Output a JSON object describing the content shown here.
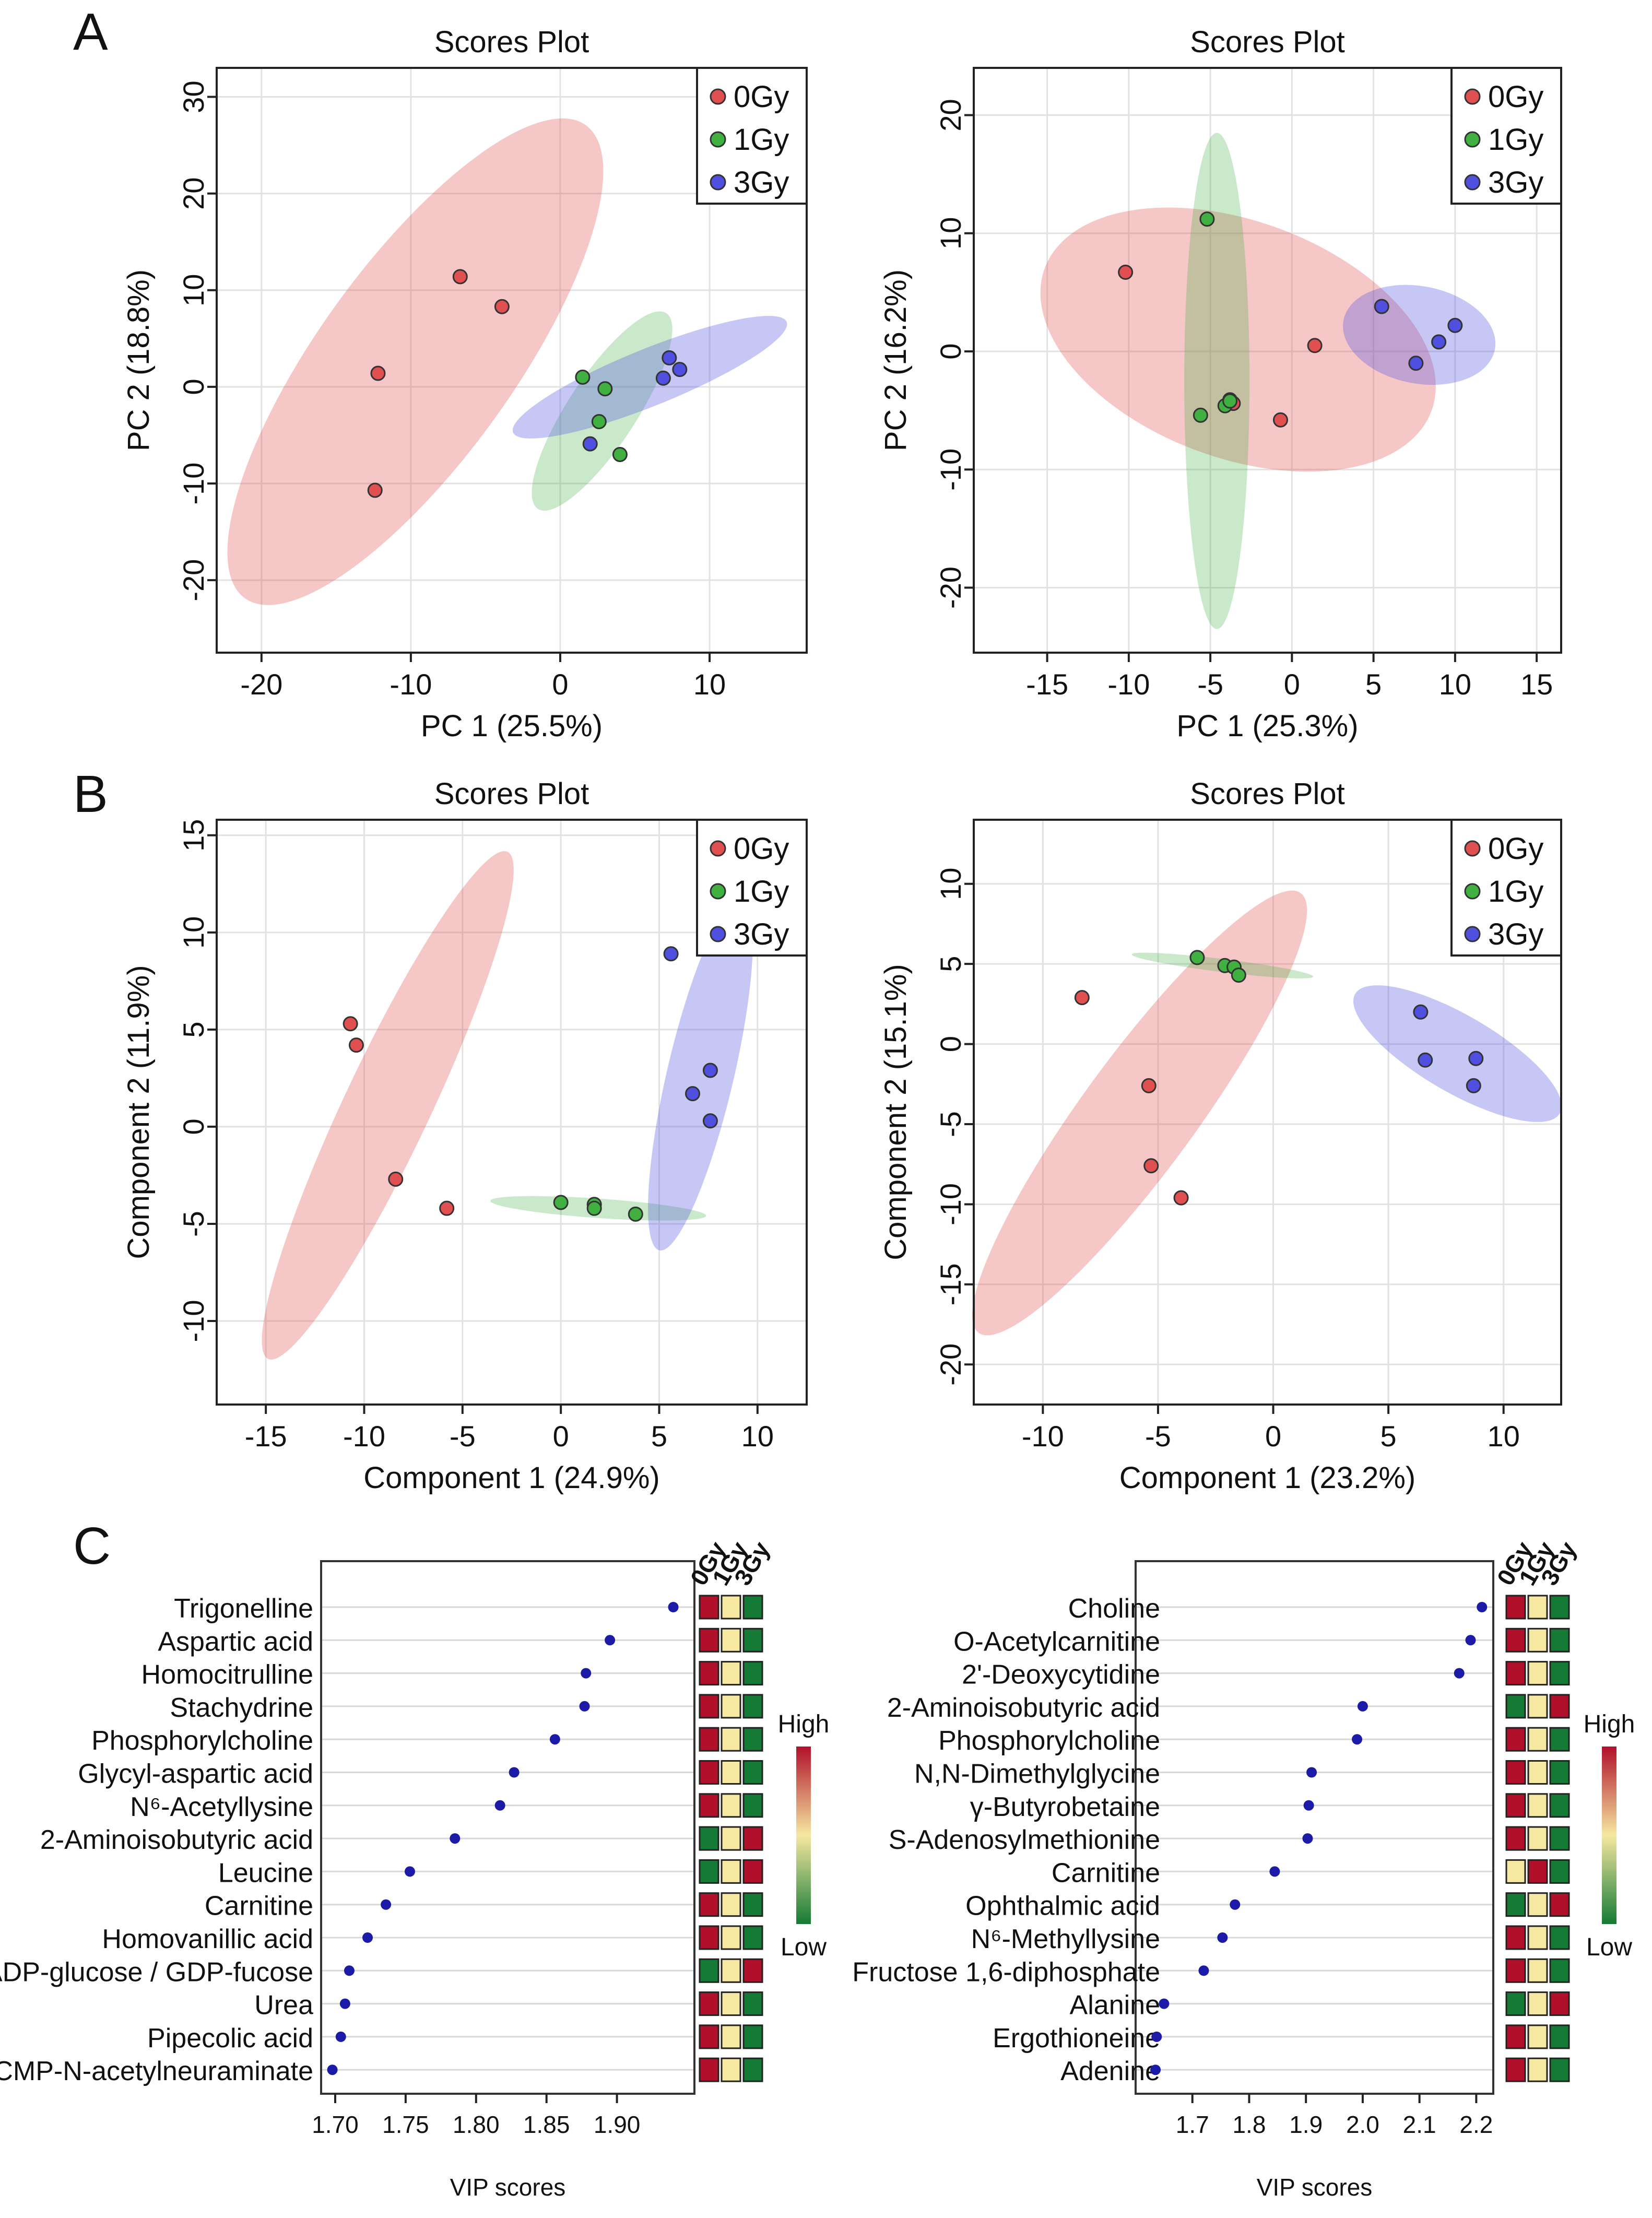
{
  "panel_labels": {
    "a": "A",
    "b": "B",
    "c": "C"
  },
  "colors": {
    "g0": "#e05050",
    "g1": "#40b040",
    "g3": "#5050e0",
    "heat_high": "#b0102a",
    "heat_mid": "#f6e8a0",
    "heat_low": "#157a35",
    "vip_dot": "#1b1ba8"
  },
  "chart_data": [
    {
      "type": "scatter",
      "id": "a1",
      "title": "Scores Plot",
      "xlabel": "PC 1 (25.5%)",
      "ylabel": "PC 2 (18.8%)",
      "xlim": [
        -23,
        16.5
      ],
      "ylim": [
        -27.5,
        33
      ],
      "xticks": [
        -20,
        -10,
        0,
        10
      ],
      "yticks": [
        -20,
        -10,
        0,
        10,
        20,
        30
      ],
      "legend": [
        "0Gy",
        "1Gy",
        "3Gy"
      ],
      "legend_position": "top-right",
      "series": [
        {
          "name": "0Gy",
          "points": [
            [
              -6.7,
              11.4
            ],
            [
              -3.9,
              8.3
            ],
            [
              -12.2,
              1.4
            ],
            [
              -12.4,
              -10.7
            ]
          ],
          "ellipse": {
            "cx": -9.7,
            "cy": 2.6,
            "rx": 27.0,
            "ry": 6.9,
            "angle": 65
          }
        },
        {
          "name": "1Gy",
          "points": [
            [
              1.5,
              1.0
            ],
            [
              3.0,
              -0.2
            ],
            [
              2.6,
              -3.6
            ],
            [
              4.0,
              -7.0
            ]
          ],
          "ellipse": {
            "cx": 2.8,
            "cy": -2.5,
            "rx": 11.0,
            "ry": 2.4,
            "angle": 67
          }
        },
        {
          "name": "3Gy",
          "points": [
            [
              7.3,
              3.0
            ],
            [
              8.0,
              1.8
            ],
            [
              6.9,
              0.9
            ],
            [
              2.0,
              -5.9
            ]
          ],
          "ellipse": {
            "cx": 6.0,
            "cy": 1.0,
            "rx": 10.8,
            "ry": 2.5,
            "angle": 32
          }
        }
      ]
    },
    {
      "type": "scatter",
      "id": "a2",
      "title": "Scores Plot",
      "xlabel": "PC 1 (25.3%)",
      "ylabel": "PC 2 (16.2%)",
      "xlim": [
        -19.5,
        16.5
      ],
      "ylim": [
        -25.5,
        24
      ],
      "xticks": [
        -15,
        -10,
        -5,
        0,
        5,
        10,
        15
      ],
      "yticks": [
        -20,
        -10,
        0,
        10,
        20
      ],
      "legend": [
        "0Gy",
        "1Gy",
        "3Gy"
      ],
      "legend_position": "top-right",
      "series": [
        {
          "name": "0Gy",
          "points": [
            [
              -10.2,
              6.7
            ],
            [
              1.4,
              0.5
            ],
            [
              -0.7,
              -5.8
            ],
            [
              -3.8,
              -4.1
            ],
            [
              -3.6,
              -4.4
            ]
          ],
          "ellipse": {
            "cx": -3.3,
            "cy": 1.0,
            "rx": 13.3,
            "ry": 9.2,
            "angle": -27
          }
        },
        {
          "name": "1Gy",
          "points": [
            [
              -5.2,
              11.2
            ],
            [
              -5.6,
              -5.4
            ],
            [
              -4.1,
              -4.6
            ],
            [
              -3.8,
              -4.2
            ]
          ],
          "ellipse": {
            "cx": -4.6,
            "cy": -2.5,
            "rx": 21.0,
            "ry": 2.0,
            "angle": 90
          }
        },
        {
          "name": "3Gy",
          "points": [
            [
              5.5,
              3.8
            ],
            [
              9.0,
              0.8
            ],
            [
              10.0,
              2.2
            ],
            [
              7.6,
              -1.0
            ]
          ],
          "ellipse": {
            "cx": 7.8,
            "cy": 1.4,
            "rx": 4.8,
            "ry": 4.0,
            "angle": -15
          }
        }
      ]
    },
    {
      "type": "scatter",
      "id": "b1",
      "title": "Scores Plot",
      "xlabel": "Component 1 (24.9%)",
      "ylabel": "Component 2 (11.9%)",
      "xlim": [
        -17.5,
        12.5
      ],
      "ylim": [
        -14.3,
        15.8
      ],
      "xticks": [
        -15,
        -10,
        -5,
        0,
        5,
        10
      ],
      "yticks": [
        -10,
        -5,
        0,
        5,
        10,
        15
      ],
      "legend": [
        "0Gy",
        "1Gy",
        "3Gy"
      ],
      "legend_position": "top-right",
      "series": [
        {
          "name": "0Gy",
          "points": [
            [
              -10.7,
              5.3
            ],
            [
              -10.4,
              4.2
            ],
            [
              -8.4,
              -2.7
            ],
            [
              -5.8,
              -4.2
            ]
          ],
          "ellipse": {
            "cx": -8.8,
            "cy": 1.1,
            "rx": 14.4,
            "ry": 2.2,
            "angle": 65
          }
        },
        {
          "name": "1Gy",
          "points": [
            [
              0.0,
              -3.9
            ],
            [
              1.7,
              -4.0
            ],
            [
              1.7,
              -4.2
            ],
            [
              3.8,
              -4.5
            ]
          ],
          "ellipse": {
            "cx": 1.9,
            "cy": -4.2,
            "rx": 5.5,
            "ry": 0.5,
            "angle": -4
          }
        },
        {
          "name": "3Gy",
          "points": [
            [
              5.6,
              8.9
            ],
            [
              7.6,
              2.9
            ],
            [
              6.7,
              1.7
            ],
            [
              7.6,
              0.3
            ]
          ],
          "ellipse": {
            "cx": 7.1,
            "cy": 2.7,
            "rx": 9.3,
            "ry": 1.7,
            "angle": 77
          }
        }
      ]
    },
    {
      "type": "scatter",
      "id": "b2",
      "title": "Scores Plot",
      "xlabel": "Component 1 (23.2%)",
      "ylabel": "Component 2 (15.1%)",
      "xlim": [
        -13,
        12.5
      ],
      "ylim": [
        -22.5,
        14
      ],
      "xticks": [
        -10,
        -5,
        0,
        5,
        10
      ],
      "yticks": [
        -20,
        -15,
        -10,
        -5,
        0,
        5,
        10
      ],
      "legend": [
        "0Gy",
        "1Gy",
        "3Gy"
      ],
      "legend_position": "top-right",
      "series": [
        {
          "name": "0Gy",
          "points": [
            [
              -8.3,
              2.9
            ],
            [
              -5.4,
              -2.6
            ],
            [
              -5.3,
              -7.6
            ],
            [
              -4.0,
              -9.6
            ]
          ],
          "ellipse": {
            "cx": -5.8,
            "cy": -4.3,
            "rx": 15.4,
            "ry": 2.6,
            "angle": 63
          }
        },
        {
          "name": "1Gy",
          "points": [
            [
              -3.3,
              5.4
            ],
            [
              -2.1,
              4.9
            ],
            [
              -1.7,
              4.8
            ],
            [
              -1.5,
              4.3
            ]
          ],
          "ellipse": {
            "cx": -2.2,
            "cy": 4.9,
            "rx": 4.0,
            "ry": 0.4,
            "angle": -10
          }
        },
        {
          "name": "3Gy",
          "points": [
            [
              6.4,
              2.0
            ],
            [
              6.6,
              -1.0
            ],
            [
              8.8,
              -0.9
            ],
            [
              8.7,
              -2.6
            ]
          ],
          "ellipse": {
            "cx": 8.0,
            "cy": -0.6,
            "rx": 5.8,
            "ry": 2.0,
            "angle": -40
          }
        }
      ]
    },
    {
      "type": "scatter",
      "id": "c1",
      "xlabel": "VIP scores",
      "xlim": [
        1.69,
        1.955
      ],
      "xticks": [
        "1.70",
        "1.75",
        "1.80",
        "1.85",
        "1.90"
      ],
      "heat_columns": [
        "0Gy",
        "1Gy",
        "3Gy"
      ],
      "scale_high": "High",
      "scale_low": "Low",
      "features": [
        {
          "name": "Trigonelline",
          "vip": 1.94,
          "heat": [
            "h",
            "m",
            "l"
          ]
        },
        {
          "name": "Aspartic acid",
          "vip": 1.895,
          "heat": [
            "h",
            "m",
            "l"
          ]
        },
        {
          "name": "Homocitrulline",
          "vip": 1.878,
          "heat": [
            "h",
            "m",
            "l"
          ]
        },
        {
          "name": "Stachydrine",
          "vip": 1.877,
          "heat": [
            "h",
            "m",
            "l"
          ]
        },
        {
          "name": "Phosphorylcholine",
          "vip": 1.856,
          "heat": [
            "h",
            "m",
            "l"
          ]
        },
        {
          "name": "Glycyl-aspartic acid",
          "vip": 1.827,
          "heat": [
            "h",
            "m",
            "l"
          ]
        },
        {
          "name": "N⁶-Acetyllysine",
          "vip": 1.817,
          "heat": [
            "h",
            "m",
            "l"
          ]
        },
        {
          "name": "2-Aminoisobutyric acid",
          "vip": 1.785,
          "heat": [
            "l",
            "m",
            "h"
          ]
        },
        {
          "name": "Leucine",
          "vip": 1.753,
          "heat": [
            "l",
            "m",
            "h"
          ]
        },
        {
          "name": "Carnitine",
          "vip": 1.736,
          "heat": [
            "h",
            "m",
            "l"
          ]
        },
        {
          "name": "Homovanillic acid",
          "vip": 1.723,
          "heat": [
            "h",
            "m",
            "l"
          ]
        },
        {
          "name": "ADP-glucose / GDP-fucose",
          "vip": 1.71,
          "heat": [
            "l",
            "m",
            "h"
          ]
        },
        {
          "name": "Urea",
          "vip": 1.707,
          "heat": [
            "h",
            "m",
            "l"
          ]
        },
        {
          "name": "Pipecolic acid",
          "vip": 1.704,
          "heat": [
            "h",
            "m",
            "l"
          ]
        },
        {
          "name": "CMP-N-acetylneuraminate",
          "vip": 1.698,
          "heat": [
            "h",
            "m",
            "l"
          ]
        }
      ]
    },
    {
      "type": "scatter",
      "id": "c2",
      "xlabel": "VIP scores",
      "xlim": [
        1.6,
        2.23
      ],
      "xticks": [
        "1.7",
        "1.8",
        "1.9",
        "2.0",
        "2.1",
        "2.2"
      ],
      "heat_columns": [
        "0Gy",
        "1Gy",
        "3Gy"
      ],
      "scale_high": "High",
      "scale_low": "Low",
      "features": [
        {
          "name": "Choline",
          "vip": 2.21,
          "heat": [
            "h",
            "m",
            "l"
          ]
        },
        {
          "name": "O-Acetylcarnitine",
          "vip": 2.19,
          "heat": [
            "h",
            "m",
            "l"
          ]
        },
        {
          "name": "2'-Deoxycytidine",
          "vip": 2.17,
          "heat": [
            "h",
            "m",
            "l"
          ]
        },
        {
          "name": "2-Aminoisobutyric acid",
          "vip": 2.0,
          "heat": [
            "l",
            "m",
            "h"
          ]
        },
        {
          "name": "Phosphorylcholine",
          "vip": 1.99,
          "heat": [
            "h",
            "m",
            "l"
          ]
        },
        {
          "name": "N,N-Dimethylglycine",
          "vip": 1.91,
          "heat": [
            "h",
            "m",
            "l"
          ]
        },
        {
          "name": "γ-Butyrobetaine",
          "vip": 1.905,
          "heat": [
            "h",
            "m",
            "l"
          ]
        },
        {
          "name": "S-Adenosylmethionine",
          "vip": 1.903,
          "heat": [
            "h",
            "m",
            "l"
          ]
        },
        {
          "name": "Carnitine",
          "vip": 1.845,
          "heat": [
            "m",
            "h",
            "l"
          ]
        },
        {
          "name": "Ophthalmic acid",
          "vip": 1.775,
          "heat": [
            "l",
            "m",
            "h"
          ]
        },
        {
          "name": "N⁶-Methyllysine",
          "vip": 1.753,
          "heat": [
            "h",
            "m",
            "l"
          ]
        },
        {
          "name": "Fructose 1,6-diphosphate",
          "vip": 1.72,
          "heat": [
            "h",
            "m",
            "l"
          ]
        },
        {
          "name": "Alanine",
          "vip": 1.65,
          "heat": [
            "l",
            "m",
            "h"
          ]
        },
        {
          "name": "Ergothioneine",
          "vip": 1.637,
          "heat": [
            "h",
            "m",
            "l"
          ]
        },
        {
          "name": "Adenine",
          "vip": 1.635,
          "heat": [
            "h",
            "m",
            "l"
          ]
        }
      ]
    }
  ]
}
